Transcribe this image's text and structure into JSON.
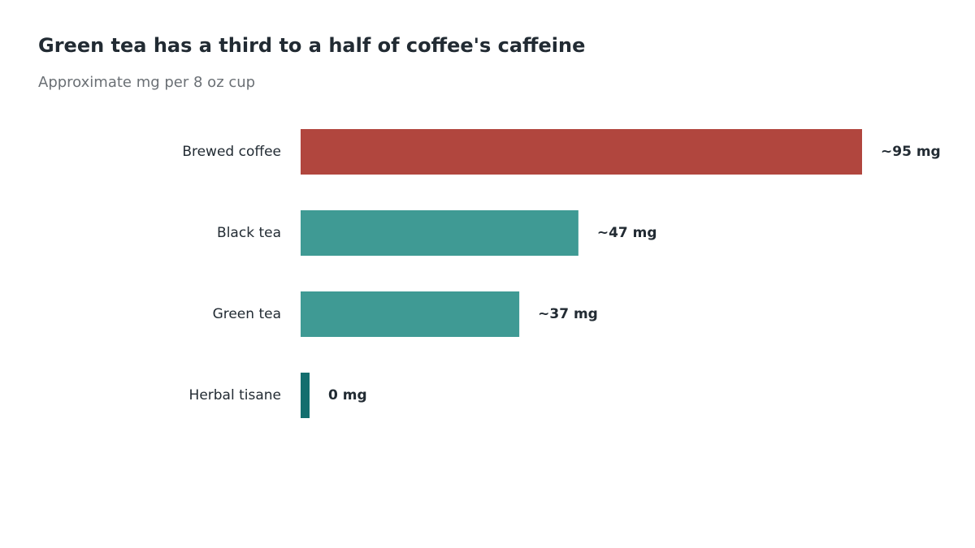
{
  "chart_data": {
    "type": "bar",
    "orientation": "horizontal",
    "title": "Green tea has a third to a half of coffee's caffeine",
    "subtitle": "Approximate mg per 8 oz cup",
    "categories": [
      "Brewed coffee",
      "Black tea",
      "Green tea",
      "Herbal tisane"
    ],
    "values": [
      95,
      47,
      37,
      0
    ],
    "value_labels": [
      "~95 mg",
      "~47 mg",
      "~37 mg",
      "0 mg"
    ],
    "colors": [
      "#b1463e",
      "#3f9a94",
      "#3f9a94",
      "#136e6e"
    ]
  }
}
